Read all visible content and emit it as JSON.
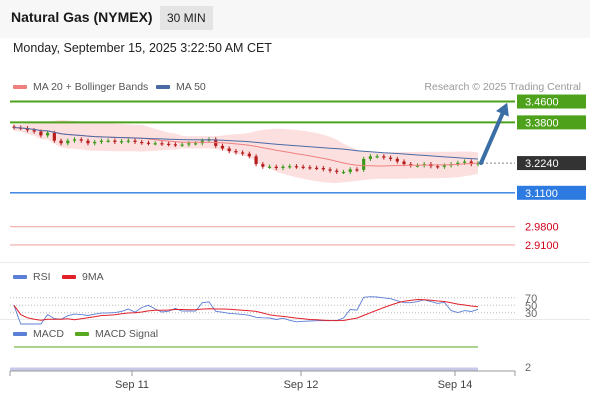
{
  "header": {
    "title": "Natural Gas (NYMEX)",
    "interval": "30 MIN",
    "timestamp": "Monday, September 15, 2025 3:22:50 AM CET"
  },
  "legend": {
    "ma_bb": "MA 20 + Bollinger Bands",
    "ma50": "MA 50",
    "credit": "Research © 2025 Trading Central"
  },
  "colors": {
    "resistance": "#4ea11a",
    "current": "#333333",
    "support": "#2d7be0",
    "target_line": "#f2a9a9",
    "target_text": "#d0021b",
    "bollinger": "#fbd3d3",
    "ma20": "#f08080",
    "ma50": "#4a6aa5",
    "candle_up": "#3a9a1a",
    "candle_down": "#b71c1c",
    "arrow": "#3a6ea5",
    "rsi": "#5b7fd6",
    "rsi_9ma": "#e0202a",
    "macd": "#5b7fd6",
    "macd_signal": "#58a820"
  },
  "rsi_panel": {
    "label": "RSI",
    "ma_label": "9MA",
    "levels": [
      "70",
      "50",
      "30"
    ]
  },
  "macd_panel": {
    "label": "MACD",
    "signal_label": "MACD Signal",
    "axis_value": "2"
  },
  "chart_data": {
    "type": "candlestick",
    "x_ticks": [
      "Sep 11",
      "Sep 12",
      "Sep 14"
    ],
    "ylim": [
      2.86,
      3.485
    ],
    "levels": [
      {
        "value": 3.46,
        "label": "3.4600",
        "kind": "resistance"
      },
      {
        "value": 3.38,
        "label": "3.3800",
        "kind": "resistance"
      },
      {
        "value": 3.224,
        "label": "3.2240",
        "kind": "current"
      },
      {
        "value": 3.11,
        "label": "3.1100",
        "kind": "support"
      },
      {
        "value": 2.98,
        "label": "2.9800",
        "kind": "target"
      },
      {
        "value": 2.91,
        "label": "2.9100",
        "kind": "target"
      }
    ],
    "close": [
      3.36,
      3.358,
      3.35,
      3.345,
      3.33,
      3.34,
      3.31,
      3.3,
      3.31,
      3.315,
      3.31,
      3.3,
      3.305,
      3.31,
      3.31,
      3.305,
      3.308,
      3.31,
      3.305,
      3.302,
      3.3,
      3.3,
      3.298,
      3.296,
      3.294,
      3.295,
      3.3,
      3.3,
      3.31,
      3.315,
      3.29,
      3.28,
      3.27,
      3.265,
      3.26,
      3.25,
      3.22,
      3.21,
      3.21,
      3.205,
      3.21,
      3.212,
      3.21,
      3.208,
      3.206,
      3.205,
      3.2,
      3.195,
      3.19,
      3.19,
      3.2,
      3.198,
      3.24,
      3.25,
      3.25,
      3.245,
      3.24,
      3.23,
      3.22,
      3.215,
      3.215,
      3.22,
      3.212,
      3.21,
      3.215,
      3.22,
      3.225,
      3.23,
      3.22,
      3.224
    ],
    "forecast": [
      3.224,
      3.46
    ],
    "rsi": {
      "ylim": [
        0,
        100
      ],
      "guides": [
        70,
        50,
        30
      ]
    },
    "macd": {
      "signal_level": "above_zero"
    }
  }
}
